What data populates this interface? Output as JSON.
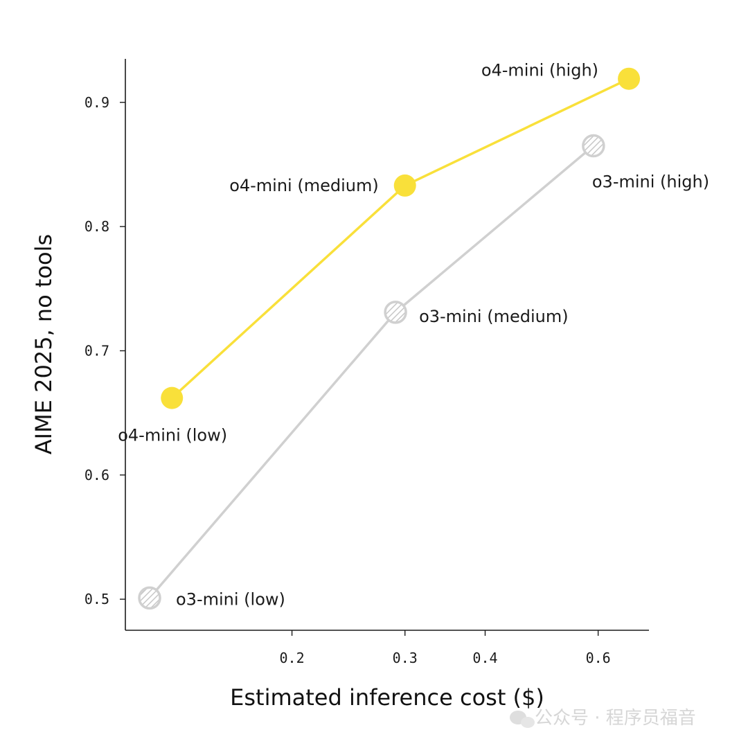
{
  "chart_data": {
    "type": "line",
    "xlabel": "Estimated inference cost ($)",
    "ylabel": "AIME 2025, no tools",
    "x_scale": "log",
    "xlim": [
      0.11,
      0.72
    ],
    "ylim": [
      0.475,
      0.935
    ],
    "x_ticks": [
      {
        "value": 0.2,
        "label": "0.2"
      },
      {
        "value": 0.3,
        "label": "0.3"
      },
      {
        "value": 0.4,
        "label": "0.4"
      },
      {
        "value": 0.6,
        "label": "0.6"
      }
    ],
    "y_ticks": [
      {
        "value": 0.5,
        "label": "0.5"
      },
      {
        "value": 0.6,
        "label": "0.6"
      },
      {
        "value": 0.7,
        "label": "0.7"
      },
      {
        "value": 0.8,
        "label": "0.8"
      },
      {
        "value": 0.9,
        "label": "0.9"
      }
    ],
    "grid": false,
    "series": [
      {
        "color": "#d0d0d0",
        "marker": "hatched-circle",
        "points": [
          {
            "x": 0.12,
            "y": 0.501,
            "label": "o3-mini (low)"
          },
          {
            "x": 0.29,
            "y": 0.731,
            "label": "o3-mini (medium)"
          },
          {
            "x": 0.59,
            "y": 0.865,
            "label": "o3-mini (high)"
          }
        ]
      },
      {
        "color": "#f9e03a",
        "marker": "filled-circle",
        "points": [
          {
            "x": 0.13,
            "y": 0.662,
            "label": "o4-mini (low)"
          },
          {
            "x": 0.3,
            "y": 0.833,
            "label": "o4-mini (medium)"
          },
          {
            "x": 0.67,
            "y": 0.919,
            "label": "o4-mini (high)"
          }
        ]
      }
    ]
  },
  "watermark": {
    "icon": "wechat-icon",
    "text": "公众号 · 程序员福音"
  }
}
